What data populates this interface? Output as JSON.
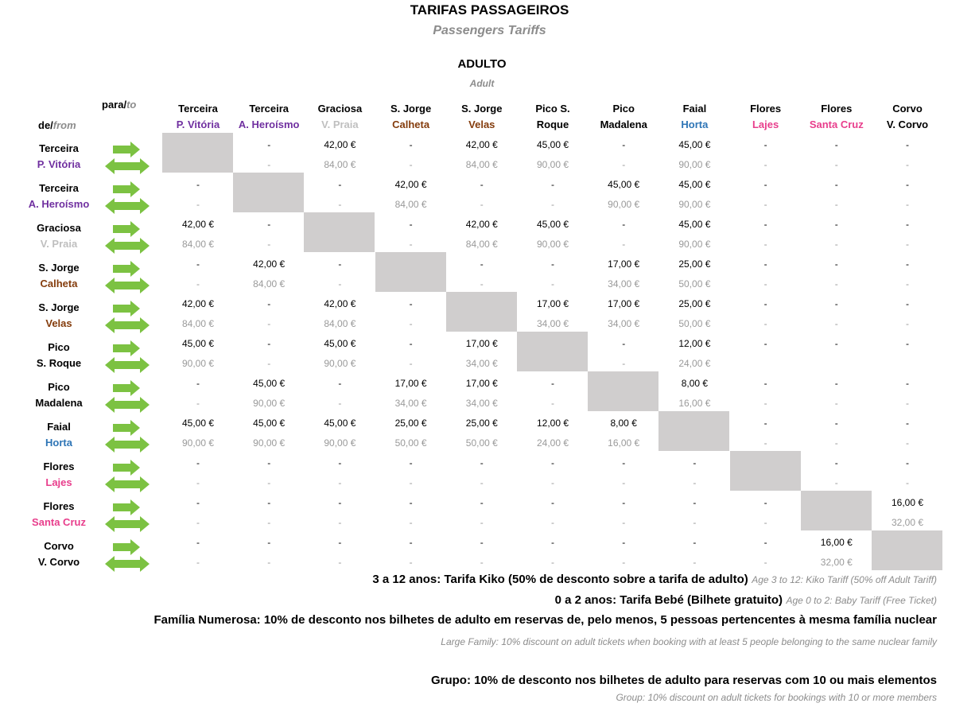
{
  "title": "TARIFAS PASSAGEIROS",
  "subtitle": "Passengers Tariffs",
  "section": "ADULTO",
  "section_en": "Adult",
  "labels": {
    "para": "para/",
    "to": "to",
    "de": "de/",
    "from": "from"
  },
  "colors": {
    "purple": "#7030a0",
    "lightgray": "#bfbfbf",
    "brown": "#843c0c",
    "blue": "#2e75b6",
    "pink": "#e83e8c",
    "black": "#000000",
    "arrow_green": "#7cc242",
    "diagonal_fill": "#d0cece"
  },
  "columns": [
    {
      "line1": "Terceira",
      "line2": "P. Vitória",
      "color": "#7030a0"
    },
    {
      "line1": "Terceira",
      "line2": "A. Heroísmo",
      "color": "#7030a0"
    },
    {
      "line1": "Graciosa",
      "line2": "V. Praia",
      "color": "#bfbfbf"
    },
    {
      "line1": "S. Jorge",
      "line2": "Calheta",
      "color": "#843c0c"
    },
    {
      "line1": "S. Jorge",
      "line2": "Velas",
      "color": "#843c0c"
    },
    {
      "line1": "Pico          S.",
      "line2": "Roque",
      "color": "#000000"
    },
    {
      "line1": "Pico",
      "line2": "Madalena",
      "color": "#000000"
    },
    {
      "line1": "Faial",
      "line2": "Horta",
      "color": "#2e75b6"
    },
    {
      "line1": "Flores",
      "line2": "Lajes",
      "color": "#e83e8c"
    },
    {
      "line1": "Flores",
      "line2": "Santa Cruz",
      "color": "#e83e8c"
    },
    {
      "line1": "Corvo",
      "line2": "V. Corvo",
      "color": "#000000"
    }
  ],
  "rows": [
    {
      "line1": "Terceira",
      "line2": "P. Vitória",
      "color": "#7030a0",
      "one_way": [
        null,
        "-",
        "42,00 €",
        "-",
        "42,00 €",
        "45,00 €",
        "-",
        "45,00 €",
        "-",
        "-",
        "-"
      ],
      "return": [
        null,
        "-",
        "84,00 €",
        "-",
        "84,00 €",
        "90,00 €",
        "-",
        "90,00 €",
        "-",
        "-",
        "-"
      ]
    },
    {
      "line1": "Terceira",
      "line2": "A. Heroísmo",
      "color": "#7030a0",
      "one_way": [
        "-",
        null,
        "-",
        "42,00 €",
        "-",
        "-",
        "45,00 €",
        "45,00 €",
        "-",
        "-",
        "-"
      ],
      "return": [
        "-",
        null,
        "-",
        "84,00 €",
        "-",
        "-",
        "90,00 €",
        "90,00 €",
        "-",
        "-",
        "-"
      ]
    },
    {
      "line1": "Graciosa",
      "line2": "V. Praia",
      "color": "#bfbfbf",
      "one_way": [
        "42,00 €",
        "-",
        null,
        "-",
        "42,00 €",
        "45,00 €",
        "-",
        "45,00 €",
        "-",
        "-",
        "-"
      ],
      "return": [
        "84,00 €",
        "-",
        null,
        "-",
        "84,00 €",
        "90,00 €",
        "-",
        "90,00 €",
        "-",
        "-",
        "-"
      ]
    },
    {
      "line1": "S. Jorge",
      "line2": "Calheta",
      "color": "#843c0c",
      "one_way": [
        "-",
        "42,00 €",
        "-",
        null,
        "-",
        "-",
        "17,00 €",
        "25,00 €",
        "-",
        "-",
        "-"
      ],
      "return": [
        "-",
        "84,00 €",
        "-",
        null,
        "-",
        "-",
        "34,00 €",
        "50,00 €",
        "-",
        "-",
        "-"
      ]
    },
    {
      "line1": "S. Jorge",
      "line2": "Velas",
      "color": "#843c0c",
      "one_way": [
        "42,00 €",
        "-",
        "42,00 €",
        "-",
        null,
        "17,00 €",
        "17,00 €",
        "25,00 €",
        "-",
        "-",
        "-"
      ],
      "return": [
        "84,00 €",
        "-",
        "84,00 €",
        "-",
        null,
        "34,00 €",
        "34,00 €",
        "50,00 €",
        "-",
        "-",
        "-"
      ]
    },
    {
      "line1": "Pico",
      "line2": "S. Roque",
      "color": "#000000",
      "one_way": [
        "45,00 €",
        "-",
        "45,00 €",
        "-",
        "17,00 €",
        null,
        "-",
        "12,00 €",
        "-",
        "-",
        "-"
      ],
      "return": [
        "90,00 €",
        "-",
        "90,00 €",
        "-",
        "34,00 €",
        null,
        "-",
        "24,00 €",
        "",
        "",
        ""
      ]
    },
    {
      "line1": "Pico",
      "line2": "Madalena",
      "color": "#000000",
      "one_way": [
        "-",
        "45,00 €",
        "-",
        "17,00 €",
        "17,00 €",
        "-",
        null,
        "8,00 €",
        "-",
        "-",
        "-"
      ],
      "return": [
        "-",
        "90,00 €",
        "-",
        "34,00 €",
        "34,00 €",
        "-",
        null,
        "16,00 €",
        "-",
        "-",
        "-"
      ]
    },
    {
      "line1": "Faial",
      "line2": "Horta",
      "color": "#2e75b6",
      "one_way": [
        "45,00 €",
        "45,00 €",
        "45,00 €",
        "25,00 €",
        "25,00 €",
        "12,00 €",
        "8,00 €",
        null,
        "-",
        "-",
        "-"
      ],
      "return": [
        "90,00 €",
        "90,00 €",
        "90,00 €",
        "50,00 €",
        "50,00 €",
        "24,00 €",
        "16,00 €",
        null,
        "-",
        "-",
        "-"
      ]
    },
    {
      "line1": "Flores",
      "line2": "Lajes",
      "color": "#e83e8c",
      "one_way": [
        "-",
        "-",
        "-",
        "-",
        "-",
        "-",
        "-",
        "-",
        null,
        "-",
        "-"
      ],
      "return": [
        "-",
        "-",
        "-",
        "-",
        "-",
        "-",
        "-",
        "-",
        null,
        "-",
        "-"
      ]
    },
    {
      "line1": "Flores",
      "line2": "Santa Cruz",
      "color": "#e83e8c",
      "one_way": [
        "-",
        "-",
        "-",
        "-",
        "-",
        "-",
        "-",
        "-",
        "-",
        null,
        "16,00 €"
      ],
      "return": [
        "-",
        "-",
        "-",
        "-",
        "-",
        "-",
        "-",
        "-",
        "-",
        null,
        "32,00 €"
      ]
    },
    {
      "line1": "Corvo",
      "line2": "V. Corvo",
      "color": "#000000",
      "one_way": [
        "-",
        "-",
        "-",
        "-",
        "-",
        "-",
        "-",
        "-",
        "-",
        "16,00 €",
        null
      ],
      "return": [
        "-",
        "-",
        "-",
        "-",
        "-",
        "-",
        "-",
        "-",
        "-",
        "32,00 €",
        null
      ]
    }
  ],
  "notes": {
    "kiko": {
      "pt": "3 a 12 anos: Tarifa Kiko (50% de desconto sobre a tarifa de adulto)",
      "en": "Age 3 to 12: Kiko Tariff (50% off Adult Tariff)"
    },
    "bebe": {
      "pt": "0 a 2 anos: Tarifa Bebé (Bilhete gratuito)",
      "en": "Age 0 to 2: Baby Tariff (Free Ticket)"
    },
    "familia": {
      "pt": "Família Numerosa: 10% de desconto nos bilhetes de adulto em reservas de, pelo menos, 5 pessoas pertencentes à mesma família nuclear",
      "en": "Large Family: 10% discount on adult tickets when booking with at least 5 people belonging to the same nuclear family"
    },
    "grupo": {
      "pt": "Grupo: 10% de desconto nos bilhetes de adulto para reservas com 10 ou mais elementos",
      "en": "Group: 10% discount on adult tickets for bookings with 10 or more members"
    }
  }
}
